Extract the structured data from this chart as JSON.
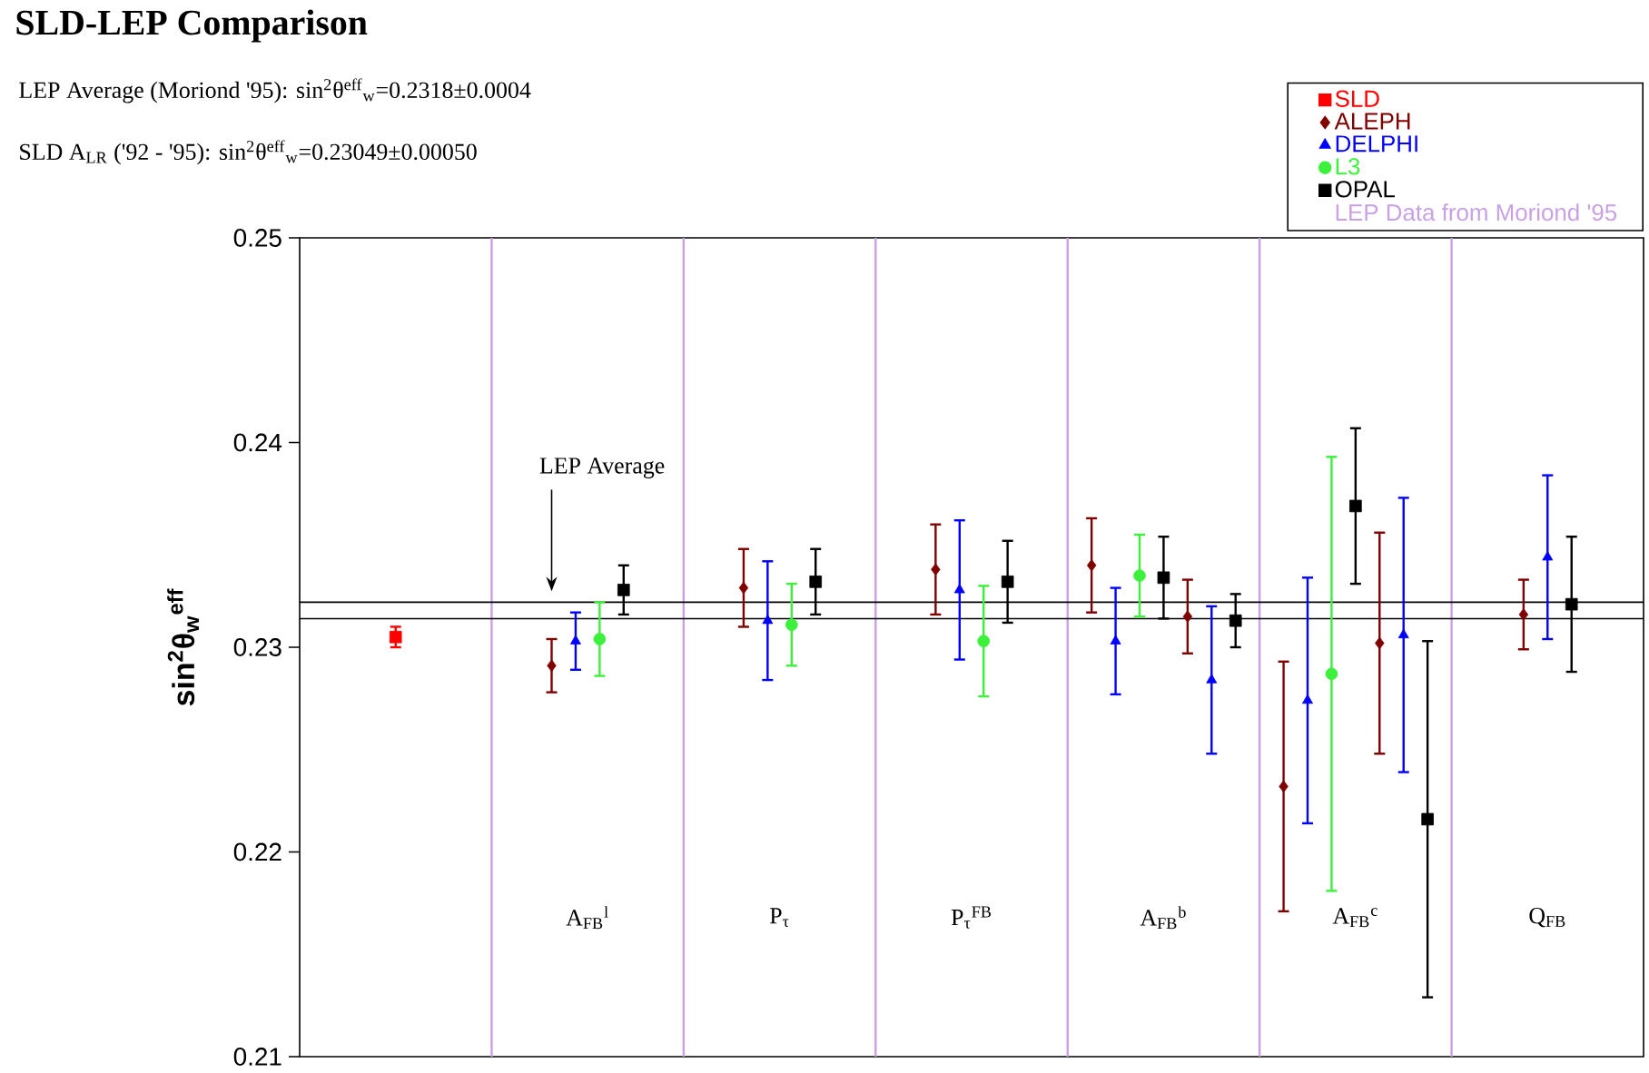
{
  "chart_data": {
    "type": "scatter",
    "title": "SLD-LEP Comparison",
    "subtitle": "LEP Average (Moriond '95): sin$^{2}$θ$^{eff}$$_{w}$=0.2318±0.0004",
    "ylabel": "sin$^{2}$θ$_{w}$$^{eff}$",
    "categories": [
      null,
      "A$_{FB}$$^{l}$",
      "P$_{τ}$",
      "P$_{τ}$$^{FB}$",
      "A$_{FB}$$^{b}$",
      "A$_{FB}$$^{c}$",
      "Q$_{FB}$"
    ],
    "ylim": [
      0.21,
      0.25
    ],
    "yticks": [
      0.21,
      0.22,
      0.23,
      0.24,
      0.25
    ],
    "legend": "top right",
    "series": [
      {
        "name": "SLD",
        "color": "#ff0000",
        "marker": "square",
        "values": [
          0.2305,
          null,
          null,
          null,
          null,
          null,
          null
        ],
        "errors": [
          0.0005,
          null,
          null,
          null,
          null,
          null,
          null
        ]
      },
      {
        "name": "ALEPH",
        "color": "#800000",
        "marker": "diamond",
        "values": [
          null,
          0.2291,
          0.2329,
          0.2338,
          0.234,
          0.2232,
          0.2316
        ],
        "errors": [
          null,
          0.0013,
          0.0019,
          0.0022,
          0.0023,
          0.0061,
          0.0017
        ]
      },
      {
        "name": "DELPHI",
        "color": "#0000ff",
        "marker": "triangle",
        "values": [
          null,
          0.2303,
          0.2313,
          0.2328,
          0.2303,
          0.2274,
          0.2344
        ],
        "errors": [
          null,
          0.0014,
          0.0029,
          0.0034,
          0.0026,
          0.006,
          0.004
        ]
      },
      {
        "name": "L3",
        "color": "#3cf03c",
        "marker": "circle",
        "values": [
          null,
          0.2304,
          0.2311,
          0.2303,
          0.2335,
          0.2287,
          null
        ],
        "errors": [
          null,
          0.0018,
          0.002,
          0.0027,
          0.002,
          0.0106,
          null
        ]
      },
      {
        "name": "OPAL",
        "color": "#000000",
        "marker": "square",
        "values": [
          null,
          0.2328,
          0.2332,
          0.2332,
          0.2334,
          0.2369,
          0.2321
        ],
        "errors": [
          null,
          0.0012,
          0.0016,
          0.002,
          0.002,
          0.0038,
          0.0033
        ]
      },
      {
        "color": "#800000",
        "marker": "diamond",
        "values": [
          null,
          null,
          null,
          null,
          0.2315,
          0.2302,
          null
        ],
        "errors": [
          null,
          null,
          null,
          null,
          0.0018,
          0.0054,
          null
        ]
      },
      {
        "color": "#0000ff",
        "marker": "triangle",
        "values": [
          null,
          null,
          null,
          null,
          0.2284,
          0.2306,
          null
        ],
        "errors": [
          null,
          null,
          null,
          null,
          0.0036,
          0.0067,
          null
        ]
      },
      {
        "color": "#000000",
        "marker": "square",
        "values": [
          null,
          null,
          null,
          null,
          0.2313,
          0.2216,
          null
        ],
        "errors": [
          null,
          null,
          null,
          null,
          0.0013,
          0.0087,
          null
        ]
      }
    ],
    "ref_lines": [
      {
        "axis": "y",
        "value": 0.2322,
        "color": "#000000"
      },
      {
        "axis": "y",
        "value": 0.2314,
        "color": "#000000"
      }
    ],
    "annotations": [
      "SLD A$_{LR}$  ('92 - '95): sin$^{2}$θ$^{eff}$$_{w}$=0.23049±0.00050",
      "LEP Average",
      "LEP Data from Moriond '95"
    ]
  }
}
